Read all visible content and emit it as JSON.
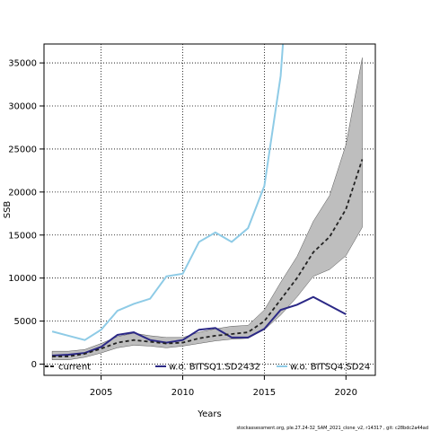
{
  "chart_data": {
    "type": "line",
    "xlabel": "Years",
    "ylabel": "SSB",
    "xlim": [
      2001.5,
      2021.8
    ],
    "ylim": [
      -1300,
      37200
    ],
    "xticks": [
      2005,
      2010,
      2015,
      2020
    ],
    "yticks": [
      0,
      5000,
      10000,
      15000,
      20000,
      25000,
      30000,
      35000
    ],
    "grid": true,
    "legend_position": "bottom",
    "series": [
      {
        "name": "current",
        "style": "dashed",
        "color": "#222222",
        "x": [
          2002,
          2003,
          2004,
          2005,
          2006,
          2007,
          2008,
          2009,
          2010,
          2011,
          2012,
          2013,
          2014,
          2015,
          2016,
          2017,
          2018,
          2019,
          2020,
          2021
        ],
        "values": [
          900,
          900,
          1200,
          1800,
          2500,
          2800,
          2600,
          2400,
          2500,
          3000,
          3300,
          3500,
          3700,
          5000,
          7500,
          10000,
          13000,
          14800,
          18000,
          23800
        ]
      },
      {
        "name": "w.o. BITSQ1.SD2432",
        "style": "solid",
        "color": "#2b2886",
        "x": [
          2002,
          2003,
          2004,
          2005,
          2006,
          2007,
          2008,
          2009,
          2010,
          2011,
          2012,
          2013,
          2014,
          2015,
          2016,
          2017,
          2018,
          2019,
          2020
        ],
        "values": [
          1000,
          1100,
          1300,
          2000,
          3400,
          3700,
          2800,
          2500,
          2800,
          4000,
          4200,
          3100,
          3100,
          4100,
          6300,
          6900,
          7800,
          6800,
          5800
        ]
      },
      {
        "name": "w.o. BITSQ4.SD24",
        "style": "solid",
        "color": "#8ecbe6",
        "x": [
          2002,
          2003,
          2004,
          2005,
          2006,
          2007,
          2008,
          2009,
          2010,
          2011,
          2012,
          2013,
          2014,
          2015,
          2016,
          2017
        ],
        "values": [
          3800,
          3300,
          2800,
          4000,
          6200,
          7000,
          7600,
          10200,
          10500,
          14200,
          15300,
          14200,
          15800,
          20700,
          33500,
          60000
        ]
      }
    ],
    "confidence_band": {
      "color": "#bebebe",
      "x": [
        2002,
        2003,
        2004,
        2005,
        2006,
        2007,
        2008,
        2009,
        2010,
        2011,
        2012,
        2013,
        2014,
        2015,
        2016,
        2017,
        2018,
        2019,
        2020,
        2021
      ],
      "lower": [
        500,
        500,
        800,
        1300,
        1900,
        2200,
        2100,
        1900,
        2100,
        2400,
        2700,
        2900,
        3000,
        4000,
        5700,
        7800,
        10200,
        11000,
        12600,
        15900
      ],
      "upper": [
        1500,
        1500,
        1700,
        2400,
        3200,
        3600,
        3300,
        3100,
        3100,
        3700,
        4100,
        4400,
        4500,
        6300,
        9500,
        12500,
        16600,
        19600,
        25500,
        35600
      ]
    }
  },
  "footer_text": "stockassessment.org, ple.27.24-32_SAM_2021_clone_v2, r14317 , git: c28bdc2a44ad"
}
